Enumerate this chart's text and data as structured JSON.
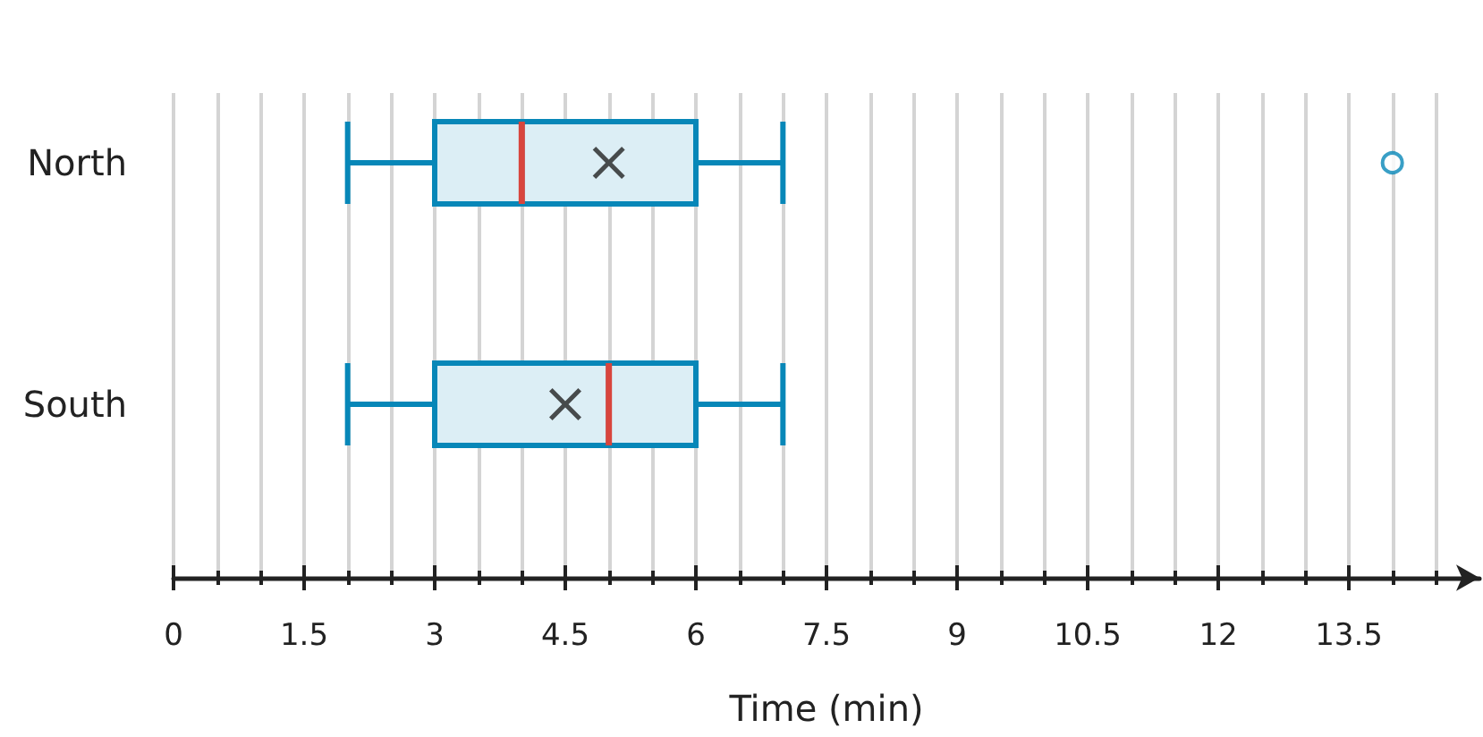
{
  "chart_data": {
    "type": "box",
    "orientation": "horizontal",
    "categories": [
      "North",
      "South"
    ],
    "xlabel": "Time (min)",
    "color": "#0787b8",
    "marker": "cross",
    "grid": "x",
    "boxes": [
      {
        "low": 2,
        "q1": 3,
        "median": 4,
        "q3": 6,
        "high": 7,
        "mean": 5,
        "outliers": [
          14
        ]
      },
      {
        "low": 2,
        "q1": 3,
        "median": 5,
        "q3": 6,
        "high": 7,
        "mean": 4.5
      }
    ],
    "xlim": [
      0,
      15
    ],
    "xticks": [
      0,
      {
        "value": 0.5,
        "label": null
      },
      {
        "value": 1,
        "label": null
      },
      1.5,
      {
        "value": 2,
        "label": null
      },
      {
        "value": 2.5,
        "label": null
      },
      3,
      {
        "value": 3.5,
        "label": null
      },
      {
        "value": 4,
        "label": null
      },
      4.5,
      {
        "value": 5,
        "label": null
      },
      {
        "value": 5.5,
        "label": null
      },
      6,
      {
        "value": 6.5,
        "label": null
      },
      {
        "value": 7,
        "label": null
      },
      7.5,
      {
        "value": 8,
        "label": null
      },
      {
        "value": 8.5,
        "label": null
      },
      9,
      {
        "value": 9.5,
        "label": null
      },
      {
        "value": 10,
        "label": null
      },
      10.5,
      {
        "value": 11,
        "label": null
      },
      {
        "value": 11.5,
        "label": null
      },
      12,
      {
        "value": 12.5,
        "label": null
      },
      {
        "value": 13,
        "label": null
      },
      13.5,
      {
        "value": 14,
        "label": null
      },
      {
        "value": 14.5,
        "label": null
      }
    ]
  }
}
